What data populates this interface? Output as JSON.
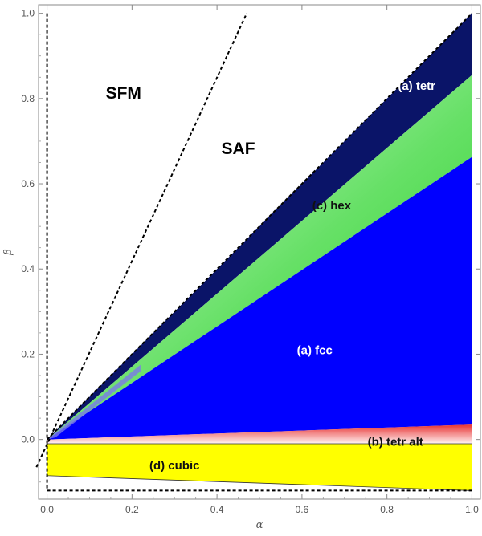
{
  "chart_data": {
    "type": "area",
    "title": "",
    "xlabel": "α",
    "ylabel": "β",
    "xlim": [
      -0.02,
      1.02
    ],
    "ylim": [
      -0.14,
      1.02
    ],
    "x_ticks": [
      0.0,
      0.2,
      0.4,
      0.6,
      0.8,
      1.0
    ],
    "x_tick_labels": [
      "0.0",
      "0.2",
      "0.4",
      "0.6",
      "0.8",
      "1.0"
    ],
    "y_ticks": [
      0.0,
      0.2,
      0.4,
      0.6,
      0.8,
      1.0
    ],
    "y_tick_labels": [
      "0.0",
      "0.2",
      "0.4",
      "0.6",
      "0.8",
      "1.0"
    ],
    "grid": false,
    "regions": [
      {
        "name": "(a) tetr",
        "color": "#0a1468",
        "label_color": "#ffffff",
        "label_at": [
          0.87,
          0.82
        ],
        "polygon": [
          [
            0.0,
            0.0
          ],
          [
            1.0,
            1.0
          ],
          [
            1.0,
            0.855
          ]
        ]
      },
      {
        "name": "(c) hex",
        "color": "#33dd33",
        "color_light": "#d8f8d8",
        "label_color": "#111111",
        "label_at": [
          0.67,
          0.54
        ],
        "polygon": [
          [
            0.0,
            0.0
          ],
          [
            1.0,
            0.855
          ],
          [
            1.0,
            0.663
          ]
        ]
      },
      {
        "name": "(a) fcc",
        "color": "#0000ff",
        "label_color": "#ffffff",
        "label_at": [
          0.63,
          0.2
        ],
        "polygon": [
          [
            0.0,
            0.0
          ],
          [
            1.0,
            0.663
          ],
          [
            1.0,
            0.035
          ],
          [
            0.0,
            0.0
          ]
        ]
      },
      {
        "name": "(b) tetr alt",
        "color": "#f04040",
        "color_light": "#fff0f0",
        "label_color": "#111111",
        "label_at": [
          0.82,
          -0.015
        ],
        "polygon": [
          [
            0.0,
            0.0
          ],
          [
            1.0,
            0.035
          ],
          [
            1.0,
            -0.01
          ],
          [
            0.0,
            -0.01
          ]
        ]
      },
      {
        "name": "(d) cubic",
        "color": "#ffff00",
        "label_color": "#111111",
        "label_at": [
          0.3,
          -0.07
        ],
        "polygon": [
          [
            0.0,
            -0.01
          ],
          [
            1.0,
            -0.01
          ],
          [
            1.0,
            -0.12
          ],
          [
            0.0,
            -0.085
          ]
        ]
      }
    ],
    "text_labels": [
      {
        "text": "SFM",
        "at": [
          0.18,
          0.8
        ]
      },
      {
        "text": "SAF",
        "at": [
          0.45,
          0.67
        ]
      }
    ],
    "dashed_lines": [
      {
        "name": "vertical-boundary",
        "points": [
          [
            0.0,
            1.0
          ],
          [
            0.0,
            -0.12
          ]
        ]
      },
      {
        "name": "bottom-boundary",
        "points": [
          [
            0.0,
            -0.12
          ],
          [
            1.0,
            -0.12
          ]
        ]
      },
      {
        "name": "steep-boundary",
        "points": [
          [
            -0.025,
            -0.065
          ],
          [
            0.47,
            1.0
          ]
        ]
      },
      {
        "name": "diagonal-boundary",
        "points": [
          [
            0.0,
            0.0
          ],
          [
            1.0,
            1.0
          ]
        ]
      }
    ]
  }
}
